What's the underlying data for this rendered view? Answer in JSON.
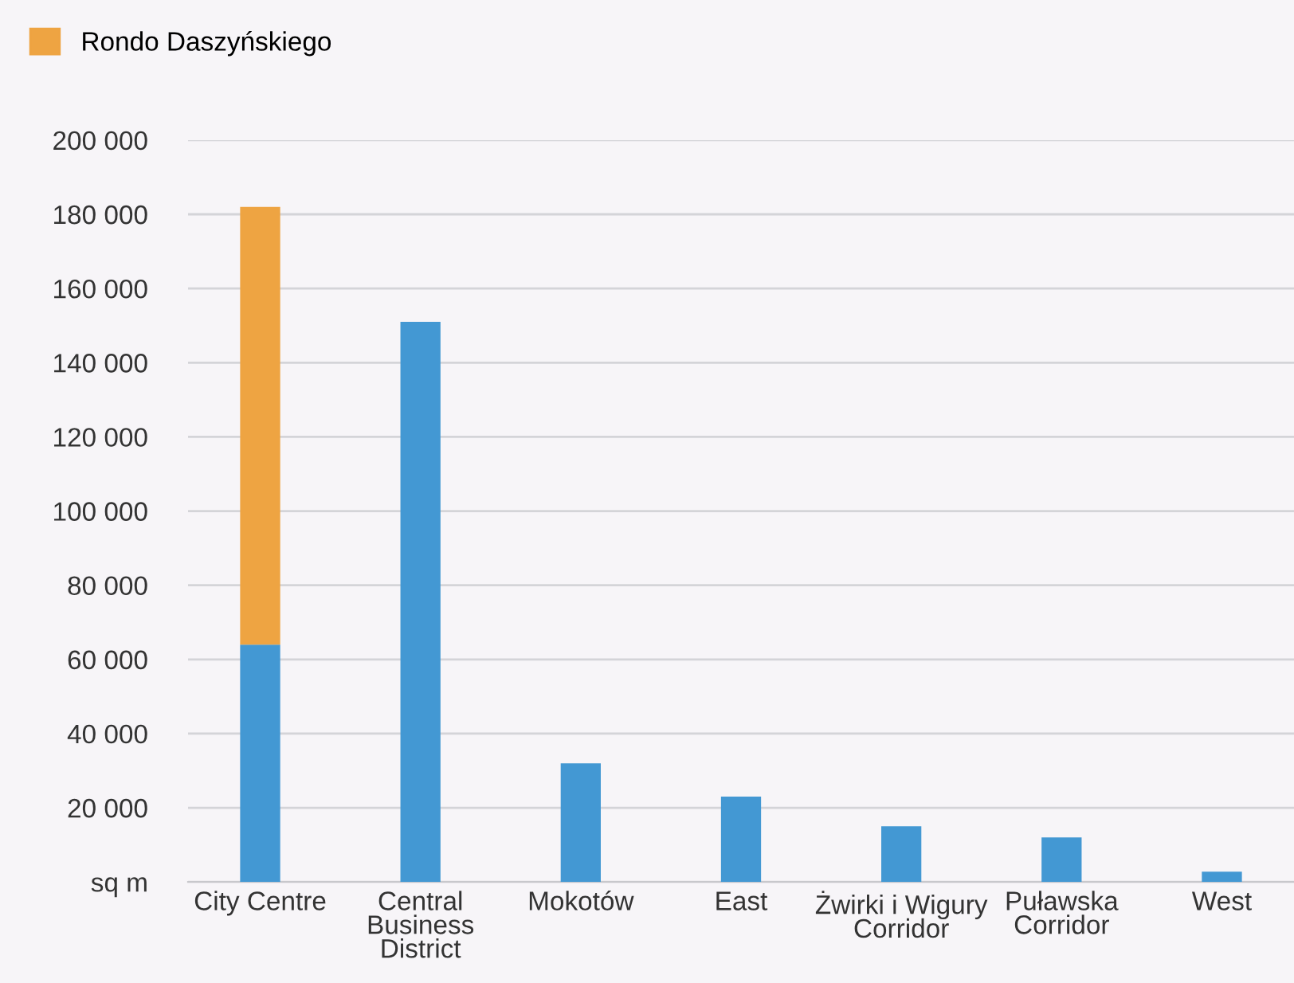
{
  "chart_data": {
    "type": "bar",
    "stacked": true,
    "categories": [
      "City Centre",
      "Central\nBusiness\nDistrict",
      "Mokotów",
      "East",
      "Żwirki i Wigury\nCorridor",
      "Puławska\nCorridor",
      "West"
    ],
    "series": [
      {
        "color": "#4398d3",
        "values": [
          64000,
          151000,
          32000,
          23000,
          15000,
          12000,
          2800
        ]
      },
      {
        "name": "Rondo Daszyńskiego",
        "color": "#eea442",
        "values": [
          118000,
          null,
          null,
          null,
          null,
          null,
          null
        ]
      }
    ],
    "ylim": [
      0,
      200000
    ],
    "yticks": [
      {
        "value": 0,
        "label": "sq m"
      },
      {
        "value": 20000,
        "label": "20 000"
      },
      {
        "value": 40000,
        "label": "40 000"
      },
      {
        "value": 60000,
        "label": "60 000"
      },
      {
        "value": 80000,
        "label": "80 000"
      },
      {
        "value": 100000,
        "label": "100 000"
      },
      {
        "value": 120000,
        "label": "120 000"
      },
      {
        "value": 140000,
        "label": "140 000"
      },
      {
        "value": 160000,
        "label": "160 000"
      },
      {
        "value": 180000,
        "label": "180 000"
      },
      {
        "value": 200000,
        "label": "200 000"
      }
    ],
    "grid": "y",
    "legend": "top left"
  }
}
